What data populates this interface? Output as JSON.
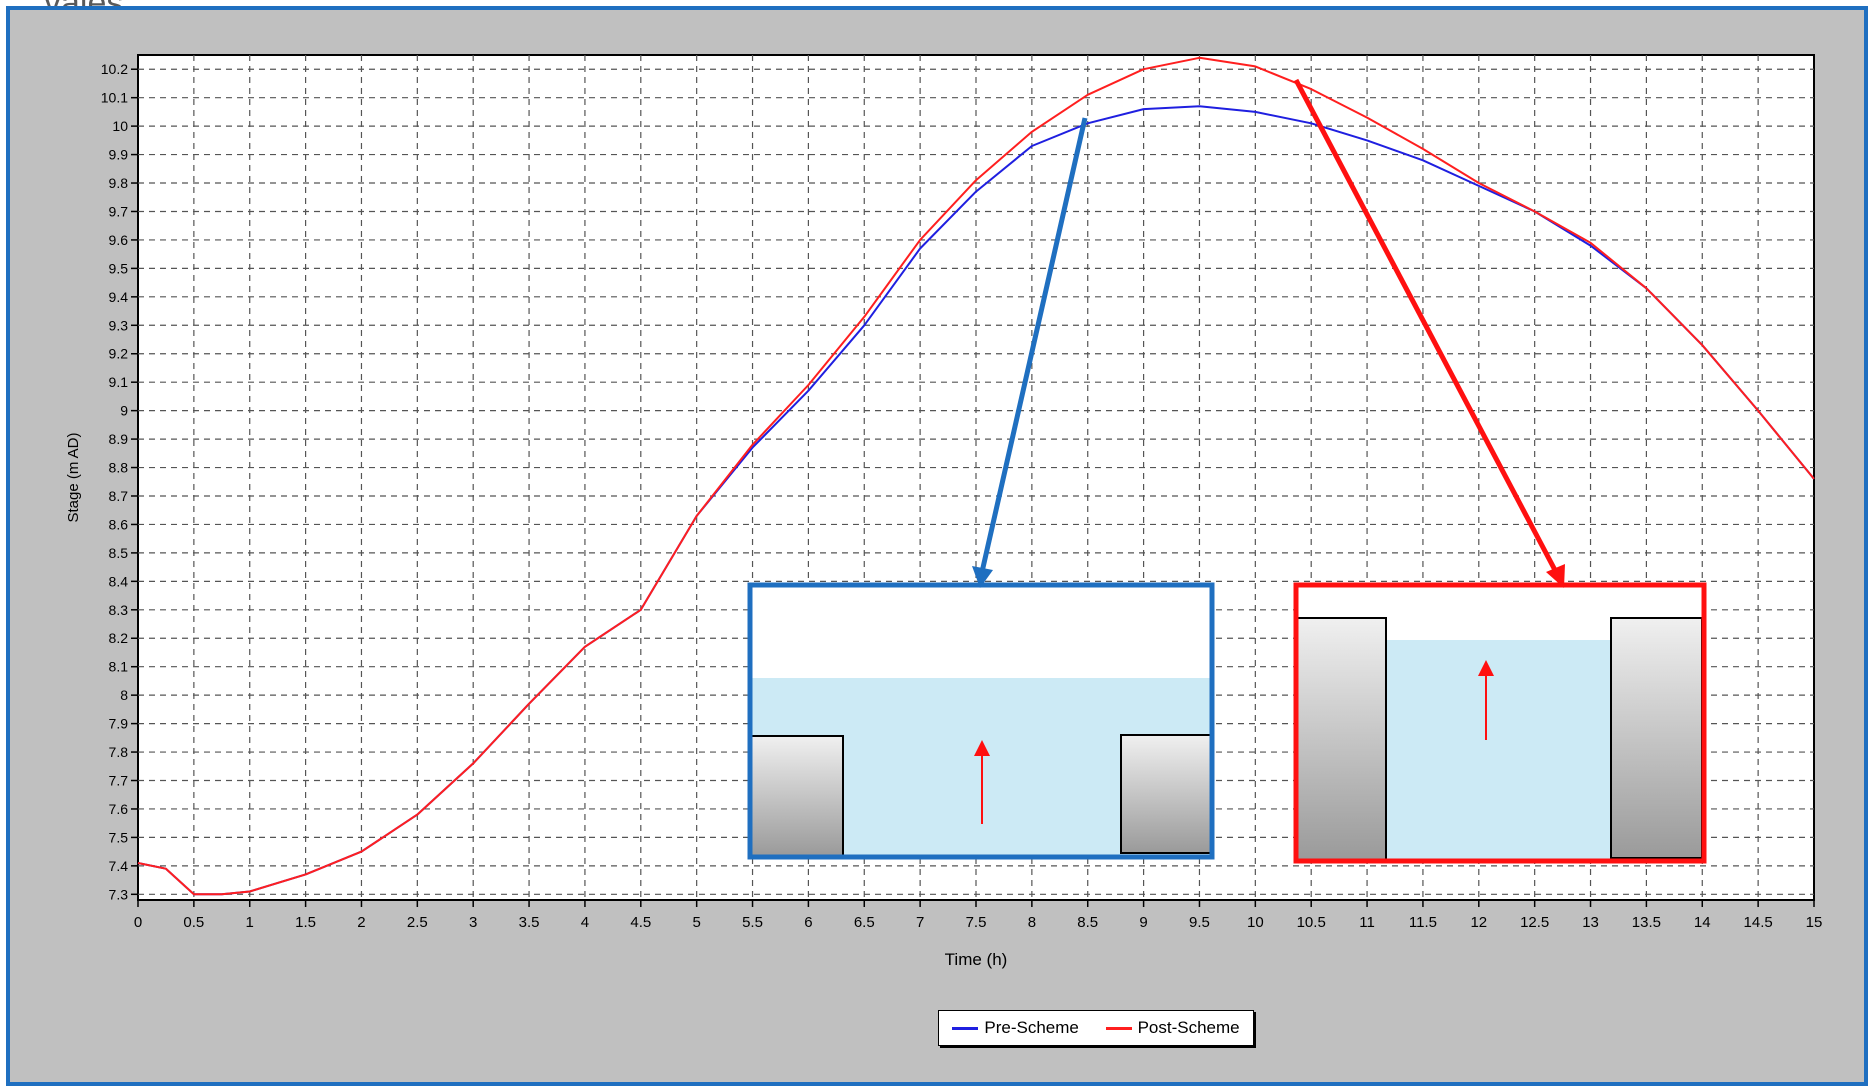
{
  "page": {
    "title_fragment": "vales"
  },
  "colors": {
    "pre": "#1f1fe0",
    "post": "#ff1f1f",
    "frame_border": "#1f6fc0",
    "inset_left_border": "#1f6fc0",
    "inset_right_border": "#ff1010",
    "water": "#cceaf5"
  },
  "chart_data": {
    "type": "line",
    "title": "",
    "xlabel": "Time (h)",
    "ylabel": "Stage (m AD)",
    "xlim": [
      0,
      15
    ],
    "ylim": [
      7.28,
      10.25
    ],
    "grid": true,
    "legend_placement": "bottom-center",
    "x_ticks": [
      "0",
      "0.5",
      "1",
      "1.5",
      "2",
      "2.5",
      "3",
      "3.5",
      "4",
      "4.5",
      "5",
      "5.5",
      "6",
      "6.5",
      "7",
      "7.5",
      "8",
      "8.5",
      "9",
      "9.5",
      "10",
      "10.5",
      "11",
      "11.5",
      "12",
      "12.5",
      "13",
      "13.5",
      "14",
      "14.5",
      "15"
    ],
    "y_ticks": [
      "7.3",
      "7.4",
      "7.5",
      "7.6",
      "7.7",
      "7.8",
      "7.9",
      "8",
      "8.1",
      "8.2",
      "8.3",
      "8.4",
      "8.5",
      "8.6",
      "8.7",
      "8.8",
      "8.9",
      "9",
      "9.1",
      "9.2",
      "9.3",
      "9.4",
      "9.5",
      "9.6",
      "9.7",
      "9.8",
      "9.9",
      "10",
      "10.1",
      "10.2"
    ],
    "x": [
      0,
      0.25,
      0.5,
      0.75,
      1,
      1.5,
      2,
      2.5,
      3,
      3.5,
      4,
      4.5,
      5,
      5.5,
      6,
      6.5,
      7,
      7.5,
      8,
      8.5,
      9,
      9.5,
      10,
      10.5,
      11,
      11.5,
      12,
      12.5,
      13,
      13.5,
      14,
      14.5,
      15
    ],
    "series": [
      {
        "name": "Pre-Scheme",
        "values": [
          7.41,
          7.39,
          7.3,
          7.3,
          7.31,
          7.37,
          7.45,
          7.58,
          7.76,
          7.97,
          8.17,
          8.3,
          8.63,
          8.87,
          9.07,
          9.3,
          9.57,
          9.77,
          9.93,
          10.01,
          10.06,
          10.07,
          10.05,
          10.01,
          9.95,
          9.88,
          9.79,
          9.7,
          9.58,
          9.43,
          9.23,
          9.0,
          8.76
        ]
      },
      {
        "name": "Post-Scheme",
        "values": [
          7.41,
          7.39,
          7.3,
          7.3,
          7.31,
          7.37,
          7.45,
          7.58,
          7.76,
          7.97,
          8.17,
          8.3,
          8.63,
          8.88,
          9.09,
          9.33,
          9.6,
          9.81,
          9.98,
          10.11,
          10.2,
          10.24,
          10.21,
          10.13,
          10.03,
          9.92,
          9.8,
          9.7,
          9.59,
          9.43,
          9.23,
          9.0,
          8.76
        ]
      }
    ]
  }
}
